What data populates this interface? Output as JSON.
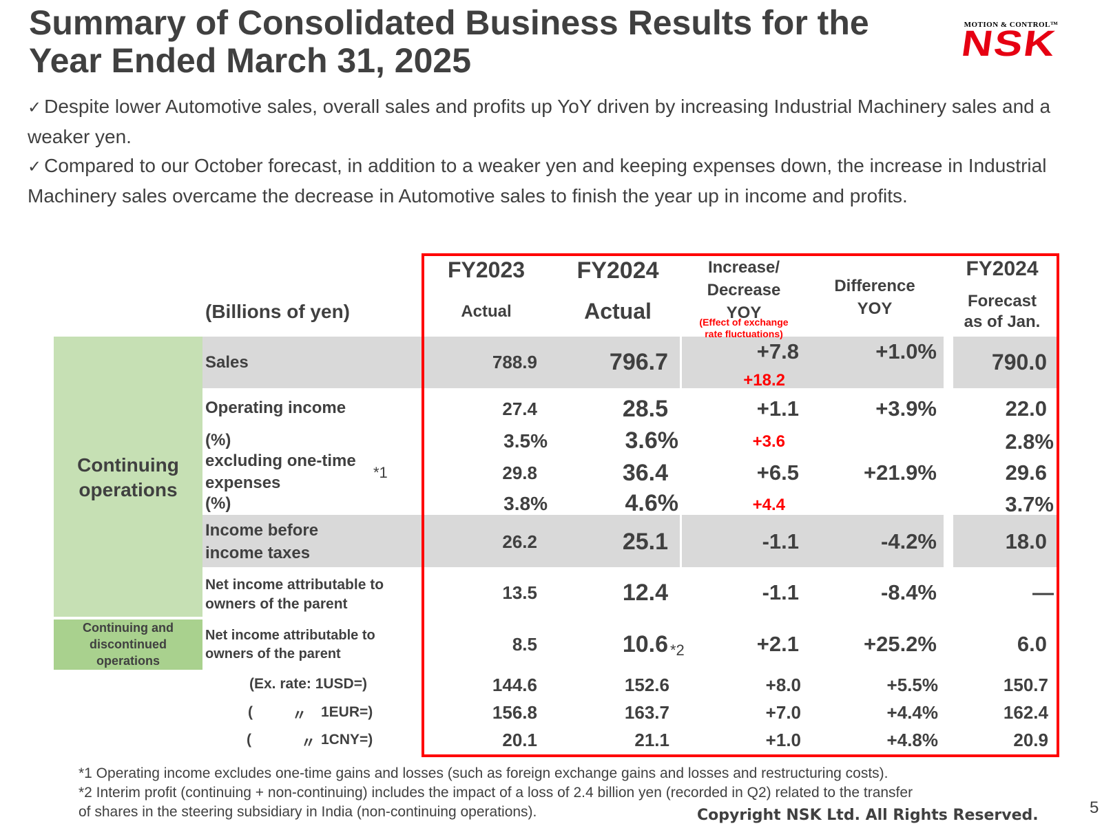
{
  "title": "Summary of Consolidated Business Results for the Year Ended March 31, 2025",
  "logo": {
    "tagline": "MOTION & CONTROL™",
    "mark": "NSK",
    "brand_color": "#e60012"
  },
  "bullets": [
    {
      "check": "✓",
      "text": "Despite lower Automotive sales, overall sales and profits up YoY driven by increasing Industrial Machinery sales and a weaker yen."
    },
    {
      "check": "✓",
      "text": "Compared to our October forecast, in addition to a weaker yen and keeping expenses down, the increase in Industrial Machinery sales overcame the decrease in Automotive sales to finish the year up in income and profits."
    }
  ],
  "table": {
    "unit_label": "(Billions of yen)",
    "headers": {
      "fy2023_top": "FY2023",
      "fy2023_bottom": "Actual",
      "fy2024_top": "FY2024",
      "fy2024_bottom": "Actual",
      "incdec_1": "Increase/",
      "incdec_2": "Decrease",
      "incdec_3": "YOY",
      "fx_note_1": "(Effect of exchange",
      "fx_note_2": "rate fluctuations)",
      "diff_1": "Difference",
      "diff_2": "YOY",
      "fcst_top": "FY2024",
      "fcst_1": "Forecast",
      "fcst_2": "as of Jan."
    },
    "section_continuing_1": "Continuing",
    "section_continuing_2": "operations",
    "section_disc_1": "Continuing and",
    "section_disc_2": "discontinued",
    "section_disc_3": "operations",
    "rows": {
      "sales": {
        "label": "Sales",
        "fy2023": "788.9",
        "fy2024": "796.7",
        "incdec": "+7.8",
        "fx": "+18.2",
        "diff": "+1.0%",
        "fcst": "790.0"
      },
      "op_income": {
        "label": "Operating income",
        "fy2023": "27.4",
        "fy2024": "28.5",
        "incdec": "+1.1",
        "diff": "+3.9%",
        "fcst": "22.0"
      },
      "op_margin": {
        "label": "(%)",
        "fy2023": "3.5%",
        "fy2024": "3.6%",
        "fx": "+3.6",
        "fcst": "2.8%"
      },
      "op_excl": {
        "label_1": "excluding one-time",
        "label_2": "expenses",
        "note": "*1",
        "fy2023": "29.8",
        "fy2024": "36.4",
        "incdec": "+6.5",
        "diff": "+21.9%",
        "fcst": "29.6"
      },
      "op_excl_margin": {
        "label": "(%)",
        "fy2023": "3.8%",
        "fy2024": "4.6%",
        "fx": "+4.4",
        "fcst": "3.7%"
      },
      "pretax": {
        "label_1": "Income before",
        "label_2": "income taxes",
        "fy2023": "26.2",
        "fy2024": "25.1",
        "incdec": "-1.1",
        "diff": "-4.2%",
        "fcst": "18.0"
      },
      "net_cont": {
        "label_1": "Net income attributable to",
        "label_2": "owners of the parent",
        "fy2023": "13.5",
        "fy2024": "12.4",
        "incdec": "-1.1",
        "diff": "-8.4%",
        "fcst": "—"
      },
      "net_all": {
        "label_1": "Net income attributable to",
        "label_2": "owners of the parent",
        "fy2023": "8.5",
        "fy2024": "10.6",
        "fy2024_note": "*2",
        "incdec": "+2.1",
        "diff": "+25.2%",
        "fcst": "6.0"
      },
      "usd": {
        "label": "(Ex. rate: 1USD=)",
        "fy2023": "144.6",
        "fy2024": "152.6",
        "incdec": "+8.0",
        "diff": "+5.5%",
        "fcst": "150.7"
      },
      "eur": {
        "paren": "(",
        "ditto": "〃",
        "label": "1EUR=)",
        "fy2023": "156.8",
        "fy2024": "163.7",
        "incdec": "+7.0",
        "diff": "+4.4%",
        "fcst": "162.4"
      },
      "cny": {
        "paren": "(",
        "ditto": "〃",
        "label": "1CNY=)",
        "fy2023": "20.1",
        "fy2024": "21.1",
        "incdec": "+1.0",
        "diff": "+4.8%",
        "fcst": "20.9"
      }
    }
  },
  "footnotes": [
    "*1 Operating income excludes one-time gains and losses (such as foreign exchange gains and losses and restructuring costs).",
    "*2 Interim profit (continuing + non-continuing) includes the impact of a loss of 2.4 billion yen (recorded in Q2) related to the transfer",
    "of shares in the steering subsidiary in India (non-continuing operations)."
  ],
  "copyright": "Copyright NSK Ltd. All Rights Reserved.",
  "page_number": "5"
}
